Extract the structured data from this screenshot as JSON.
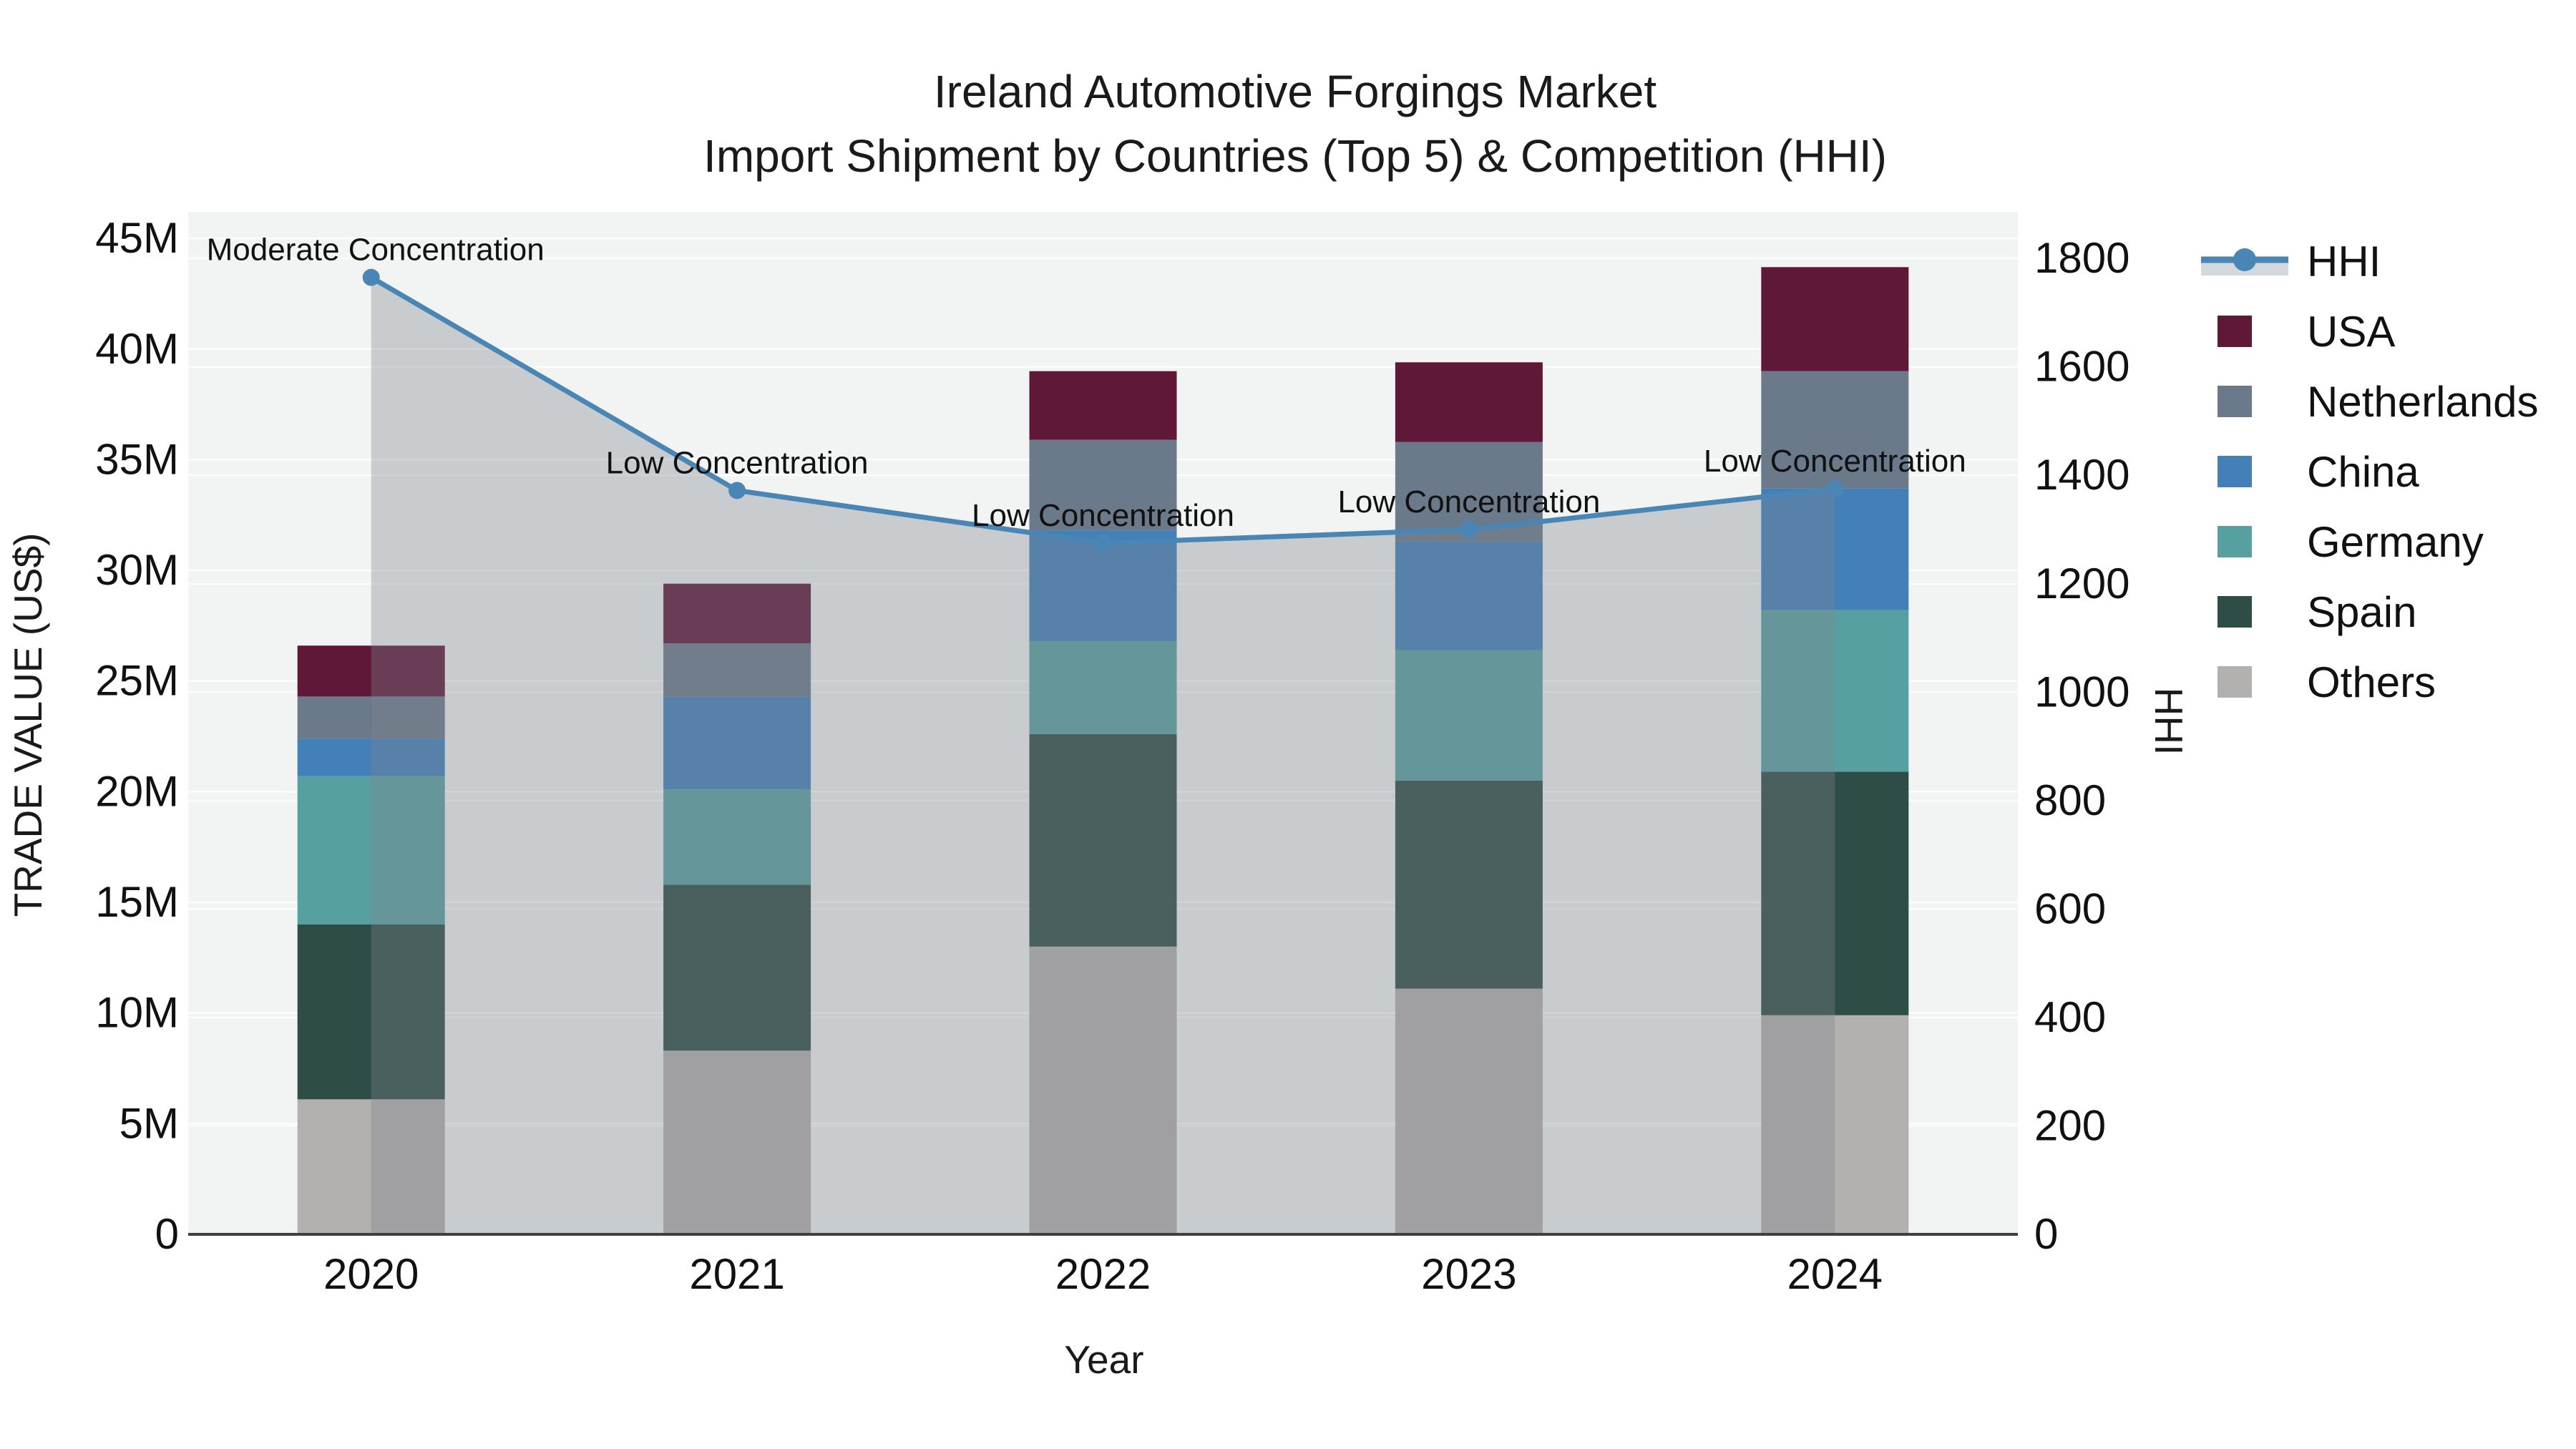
{
  "chart_data": {
    "type": "stacked_bar_with_line",
    "title": "Ireland Automotive Forgings Market",
    "subtitle": "Import Shipment by Countries (Top 5) & Competition (HHI)",
    "categories": [
      "2020",
      "2021",
      "2022",
      "2023",
      "2024"
    ],
    "value_unit": "million US$",
    "series": [
      {
        "name": "Others",
        "color": "#b3b0b0",
        "values_musd": [
          6.1,
          8.3,
          13.0,
          11.1,
          9.9
        ]
      },
      {
        "name": "Spain",
        "color": "#2d4d46",
        "values_musd": [
          7.9,
          7.5,
          9.6,
          9.4,
          11.0
        ]
      },
      {
        "name": "Germany",
        "color": "#57a0a1",
        "values_musd": [
          6.7,
          4.3,
          4.2,
          5.9,
          7.3
        ]
      },
      {
        "name": "China",
        "color": "#4380b8",
        "values_musd": [
          1.7,
          4.2,
          5.0,
          4.9,
          5.5
        ]
      },
      {
        "name": "Netherlands",
        "color": "#6b7a8b",
        "values_musd": [
          1.9,
          2.4,
          4.1,
          4.5,
          5.3
        ]
      },
      {
        "name": "USA",
        "color": "#5f1838",
        "values_musd": [
          2.3,
          2.7,
          3.1,
          3.6,
          4.7
        ]
      }
    ],
    "bar_totals_musd": [
      26.6,
      29.4,
      39.0,
      39.4,
      43.7
    ],
    "hhi": {
      "name": "HHI",
      "values": [
        1765,
        1372,
        1275,
        1300,
        1375
      ],
      "line_color": "#4a86b5",
      "fill_color": "rgba(125,131,141,0.35)",
      "legend_band_color": "#d3d7de",
      "annotations": [
        "Moderate Concentration",
        "Low Concentration",
        "Low Concentration",
        "Low Concentration",
        "Low Concentration"
      ]
    },
    "left_axis": {
      "label": "TRADE VALUE (US$)",
      "tick_values_musd": [
        0,
        5,
        10,
        15,
        20,
        25,
        30,
        35,
        40,
        45
      ],
      "tick_labels": [
        "0",
        "5M",
        "10M",
        "15M",
        "20M",
        "25M",
        "30M",
        "35M",
        "40M",
        "45M"
      ],
      "range_musd": [
        0,
        46.2
      ]
    },
    "right_axis": {
      "label": "HHI",
      "tick_values": [
        0,
        200,
        400,
        600,
        800,
        1000,
        1200,
        1400,
        1600,
        1800
      ],
      "tick_labels": [
        "0",
        "200",
        "400",
        "600",
        "800",
        "1000",
        "1200",
        "1400",
        "1600",
        "1800"
      ],
      "range": [
        0,
        1886
      ]
    },
    "x_axis": {
      "label": "Year"
    },
    "legend_order": [
      "HHI",
      "USA",
      "Netherlands",
      "China",
      "Germany",
      "Spain",
      "Others"
    ],
    "colors": {
      "plot_bg": "#f2f3f3",
      "grid": "#ffffff",
      "axis_line": "#3f3f3f",
      "text": "#111111"
    },
    "legend_position": "right",
    "grid_on": true
  }
}
